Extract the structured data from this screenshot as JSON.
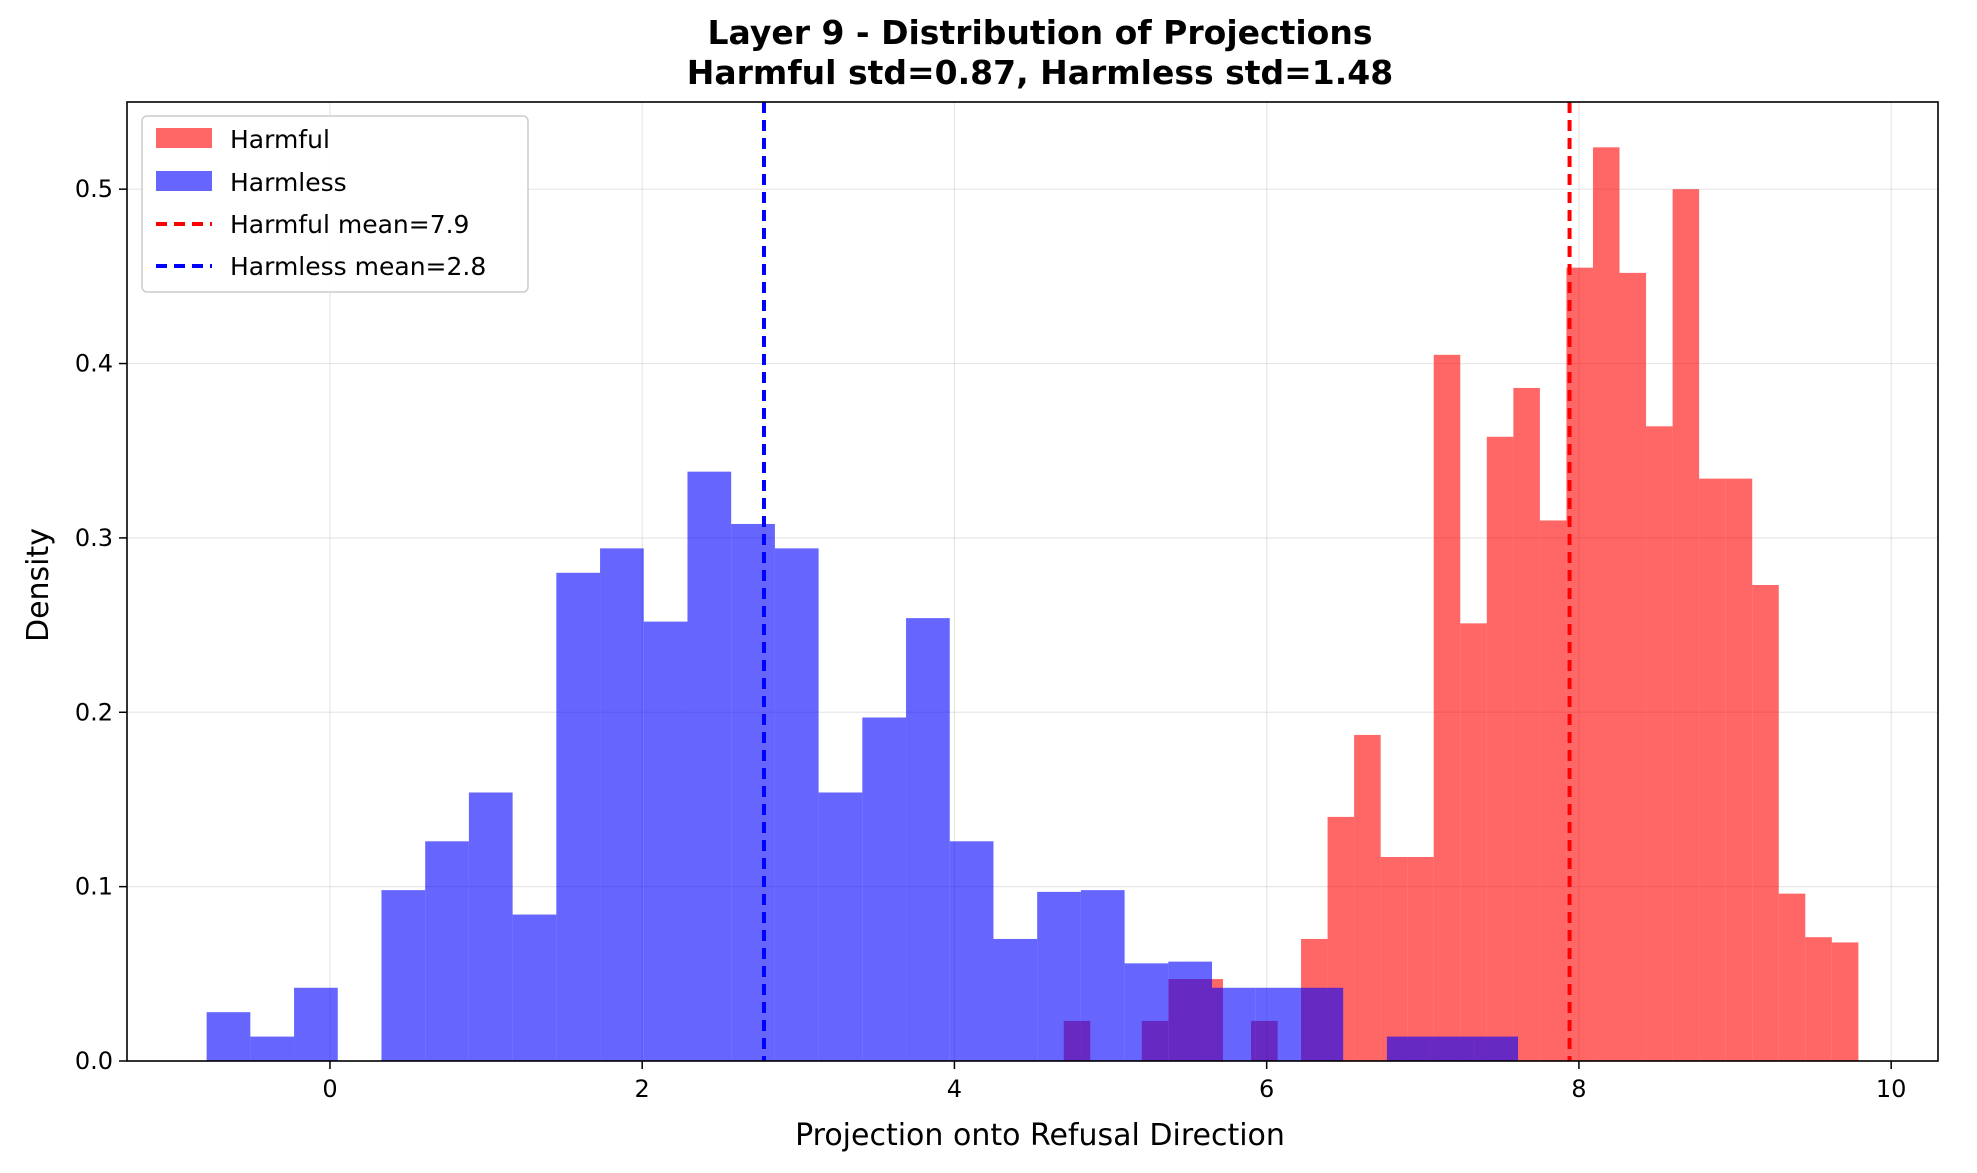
{
  "chart_data": {
    "type": "histogram",
    "title": "Layer 9 - Distribution of Projections",
    "subtitle": "Harmful std=0.87, Harmless std=1.48",
    "xlabel": "Projection onto Refusal Direction",
    "ylabel": "Density",
    "xlim": [
      -1.3,
      10.3
    ],
    "ylim": [
      0,
      0.55
    ],
    "xticks": [
      0,
      2,
      4,
      6,
      8,
      10
    ],
    "xtick_labels": [
      "0",
      "2",
      "4",
      "6",
      "8",
      "10"
    ],
    "yticks": [
      0.0,
      0.1,
      0.2,
      0.3,
      0.4,
      0.5
    ],
    "ytick_labels": [
      "0.0",
      "0.1",
      "0.2",
      "0.3",
      "0.4",
      "0.5"
    ],
    "grid": true,
    "legend_position": "top-left",
    "legend": [
      "Harmful",
      "Harmless",
      "Harmful mean=7.9",
      "Harmless mean=2.8"
    ],
    "series": [
      {
        "name": "Harmful",
        "color": "#ff0000",
        "alpha": 0.6,
        "bins": [
          [
            4.7,
            4.87,
            0.023
          ],
          [
            5.2,
            5.37,
            0.023
          ],
          [
            5.37,
            5.55,
            0.047
          ],
          [
            5.55,
            5.72,
            0.047
          ],
          [
            5.9,
            6.07,
            0.023
          ],
          [
            6.22,
            6.39,
            0.07
          ],
          [
            6.39,
            6.56,
            0.14
          ],
          [
            6.56,
            6.73,
            0.187
          ],
          [
            6.73,
            6.9,
            0.117
          ],
          [
            6.9,
            7.07,
            0.117
          ],
          [
            7.07,
            7.24,
            0.405
          ],
          [
            7.24,
            7.41,
            0.251
          ],
          [
            7.41,
            7.58,
            0.358
          ],
          [
            7.58,
            7.75,
            0.386
          ],
          [
            7.75,
            7.92,
            0.31
          ],
          [
            7.92,
            8.09,
            0.455
          ],
          [
            8.09,
            8.26,
            0.524
          ],
          [
            8.26,
            8.43,
            0.452
          ],
          [
            8.43,
            8.6,
            0.364
          ],
          [
            8.6,
            8.77,
            0.5
          ],
          [
            8.77,
            8.94,
            0.334
          ],
          [
            8.94,
            9.11,
            0.334
          ],
          [
            9.11,
            9.28,
            0.273
          ],
          [
            9.28,
            9.45,
            0.096
          ],
          [
            9.45,
            9.62,
            0.071
          ],
          [
            9.62,
            9.79,
            0.068
          ]
        ]
      },
      {
        "name": "Harmless",
        "color": "#0000ff",
        "alpha": 0.6,
        "bins": [
          [
            -0.79,
            -0.51,
            0.028
          ],
          [
            -0.51,
            -0.23,
            0.014
          ],
          [
            -0.23,
            0.05,
            0.042
          ],
          [
            0.05,
            0.33,
            0.0
          ],
          [
            0.33,
            0.61,
            0.098
          ],
          [
            0.61,
            0.89,
            0.126
          ],
          [
            0.89,
            1.17,
            0.154
          ],
          [
            1.17,
            1.45,
            0.084
          ],
          [
            1.45,
            1.73,
            0.28
          ],
          [
            1.73,
            2.01,
            0.294
          ],
          [
            2.01,
            2.29,
            0.252
          ],
          [
            2.29,
            2.57,
            0.338
          ],
          [
            2.57,
            2.85,
            0.308
          ],
          [
            2.85,
            3.13,
            0.294
          ],
          [
            3.13,
            3.41,
            0.154
          ],
          [
            3.41,
            3.69,
            0.197
          ],
          [
            3.69,
            3.97,
            0.254
          ],
          [
            3.97,
            4.25,
            0.126
          ],
          [
            4.25,
            4.53,
            0.07
          ],
          [
            4.53,
            4.81,
            0.097
          ],
          [
            4.81,
            5.09,
            0.098
          ],
          [
            5.09,
            5.37,
            0.056
          ],
          [
            5.37,
            5.65,
            0.057
          ],
          [
            5.65,
            5.93,
            0.042
          ],
          [
            5.93,
            6.21,
            0.042
          ],
          [
            6.21,
            6.49,
            0.042
          ],
          [
            6.49,
            6.77,
            0.0
          ],
          [
            6.77,
            7.05,
            0.014
          ],
          [
            7.05,
            7.33,
            0.014
          ],
          [
            7.33,
            7.61,
            0.014
          ]
        ]
      }
    ],
    "mean_lines": [
      {
        "label": "Harmful mean=7.9",
        "x": 7.94,
        "color": "#ff0000"
      },
      {
        "label": "Harmless mean=2.8",
        "x": 2.78,
        "color": "#0000ff"
      }
    ]
  }
}
